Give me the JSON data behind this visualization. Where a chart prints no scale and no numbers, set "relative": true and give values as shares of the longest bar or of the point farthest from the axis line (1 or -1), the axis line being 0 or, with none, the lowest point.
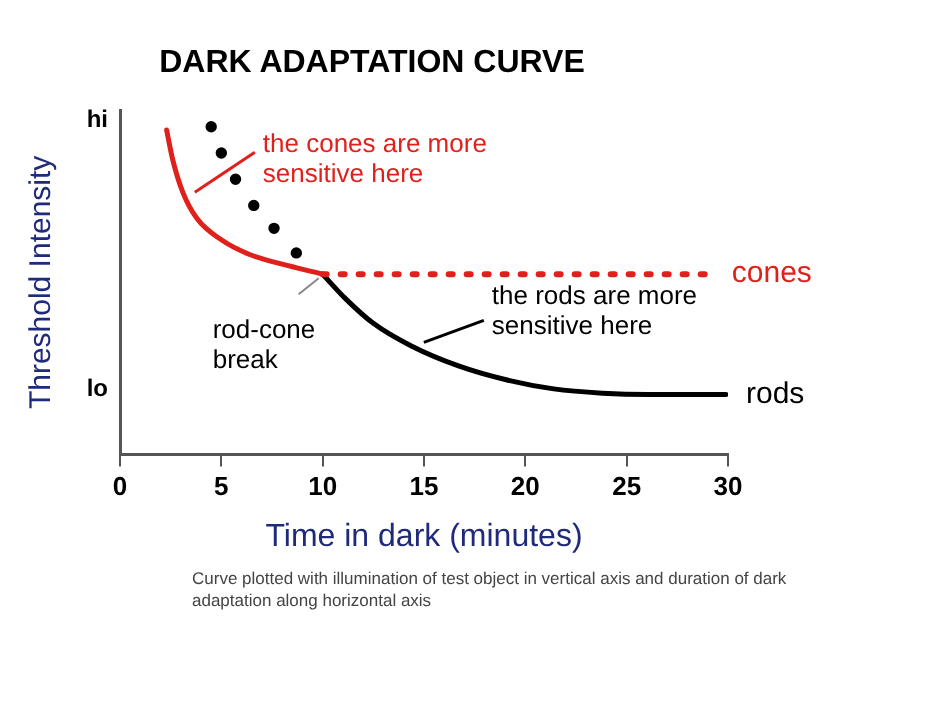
{
  "chart_data": {
    "type": "line",
    "title": "DARK ADAPTATION CURVE",
    "xlabel": "Time in dark (minutes)",
    "ylabel": "Threshold Intensity",
    "relative": true,
    "xlim": [
      0,
      30
    ],
    "xticks": [
      0,
      5,
      10,
      15,
      20,
      25,
      30
    ],
    "legend": false,
    "series": [
      {
        "color": "#e0201b",
        "x": [
          2.3,
          2.6,
          3.1,
          3.8,
          5.0,
          6.4,
          8.3,
          10.0
        ],
        "values": [
          0.99,
          0.9,
          0.8,
          0.72,
          0.655,
          0.61,
          0.576,
          0.55
        ],
        "marker": "none",
        "line_style": "solid"
      },
      {
        "name": "cones",
        "color": "#e0201b",
        "x": [
          10,
          12,
          14,
          16,
          18,
          20,
          22,
          24,
          26,
          28,
          29.2
        ],
        "values": [
          0.55,
          0.55,
          0.55,
          0.55,
          0.55,
          0.55,
          0.55,
          0.55,
          0.55,
          0.55,
          0.55
        ],
        "marker": "none",
        "line_style": "dotted"
      },
      {
        "type": "scatter",
        "color": "#000000",
        "x": [
          4.5,
          5.0,
          5.7,
          6.6,
          7.6,
          8.7
        ],
        "values": [
          1.0,
          0.92,
          0.84,
          0.76,
          0.69,
          0.615
        ],
        "marker": "circle"
      },
      {
        "name": "rods",
        "color": "#000000",
        "x": [
          10,
          11.1,
          12.5,
          14.4,
          16.7,
          19.1,
          21.4,
          23.8,
          26.1,
          29.9
        ],
        "values": [
          0.55,
          0.477,
          0.4,
          0.33,
          0.27,
          0.227,
          0.2,
          0.187,
          0.183,
          0.183
        ],
        "marker": "none",
        "line_style": "solid"
      }
    ],
    "annotations": [
      "hi",
      "lo",
      "Curve plotted with illumination of test object in vertical axis and duration of dark adaptation along horizontal axis",
      {
        "text": "the cones are more sensitive here",
        "x": 3.1,
        "y": 0.8
      },
      {
        "text": "rod-cone break",
        "x": 10,
        "y": 0.55
      },
      {
        "text": "the rods are more sensitive here",
        "x": 14.4,
        "y": 0.33
      }
    ]
  }
}
